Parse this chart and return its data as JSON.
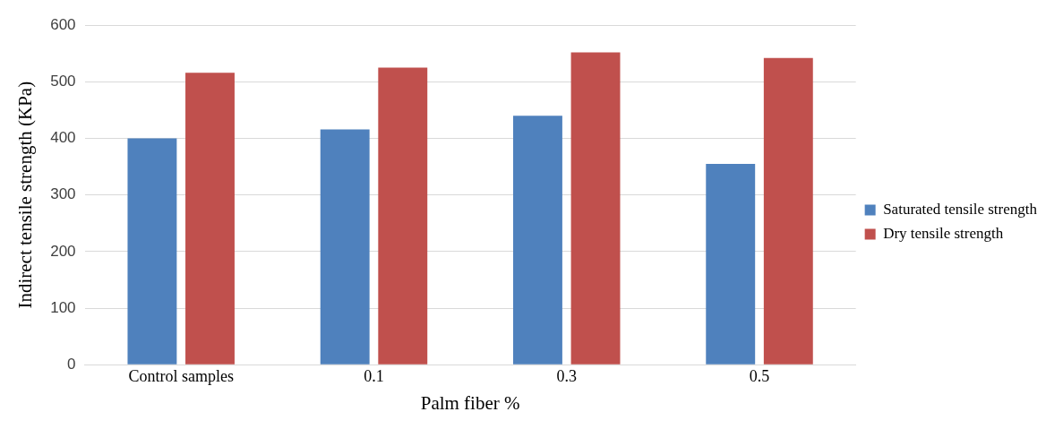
{
  "chart_data": {
    "type": "bar",
    "xlabel": "Palm fiber %",
    "ylabel": "Indirect tensile strength (KPa)",
    "categories": [
      "Control samples",
      "0.1",
      "0.3",
      "0.5"
    ],
    "series": [
      {
        "name": "Saturated tensile strength",
        "color": "#4f81bd",
        "values": [
          400,
          416,
          440,
          355
        ]
      },
      {
        "name": "Dry tensile strength",
        "color": "#c0504d",
        "values": [
          516,
          525,
          552,
          542
        ]
      }
    ],
    "ylim": [
      0,
      600
    ],
    "yticks": [
      0,
      100,
      200,
      300,
      400,
      500,
      600
    ],
    "grid": "y",
    "legend": "right"
  }
}
